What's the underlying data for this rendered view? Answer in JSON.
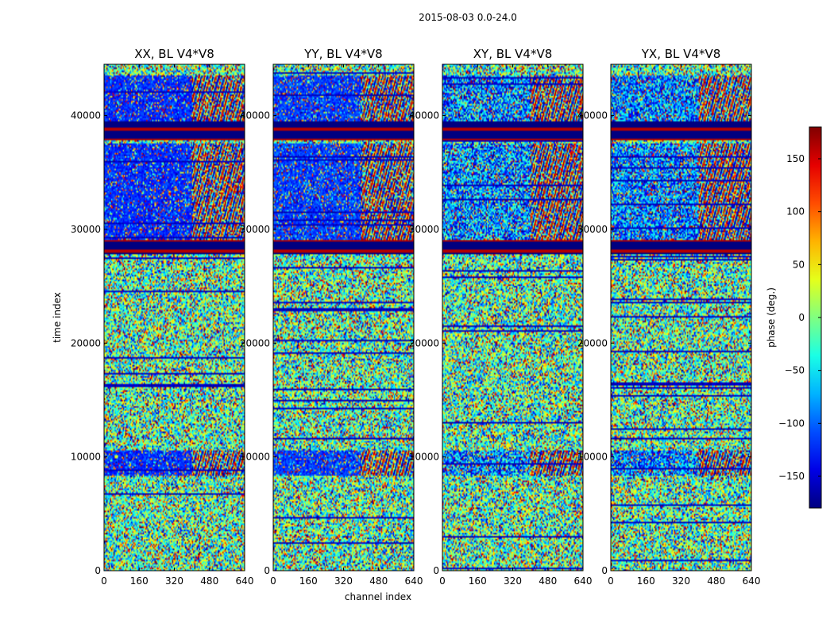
{
  "chart_data": {
    "type": "heatmap",
    "suptitle": "2015-08-03 0.0-24.0",
    "panels": [
      {
        "title": "XX, BL V4*V8",
        "seed": 11,
        "coherent_shift": 0
      },
      {
        "title": "YY, BL V4*V8",
        "seed": 23,
        "coherent_shift": 0.08
      },
      {
        "title": "XY, BL V4*V8",
        "seed": 37,
        "coherent_shift": 0.45
      },
      {
        "title": "YX, BL V4*V8",
        "seed": 53,
        "coherent_shift": 0.4
      }
    ],
    "xlabel": "channel index",
    "ylabel": "time index",
    "xlim": [
      0,
      640
    ],
    "ylim": [
      0,
      44500
    ],
    "xticks": [
      0,
      160,
      320,
      480,
      640
    ],
    "yticks": [
      0,
      10000,
      20000,
      30000,
      40000
    ],
    "colorbar": {
      "label": "phase (deg.)",
      "range": [
        -180,
        180
      ],
      "ticks": [
        150,
        100,
        50,
        0,
        -50,
        -100,
        -150
      ],
      "tick_labels": [
        "150",
        "100",
        "50",
        "0",
        "−50",
        "−100",
        "−150"
      ],
      "colormap": "jet"
    },
    "flagged_bands": [
      [
        27800,
        29000
      ],
      [
        37800,
        39500
      ]
    ],
    "coherent_bands": [
      [
        8300,
        10500
      ],
      [
        29000,
        37600
      ],
      [
        39500,
        43500
      ]
    ],
    "coherent_phase": -120
  }
}
